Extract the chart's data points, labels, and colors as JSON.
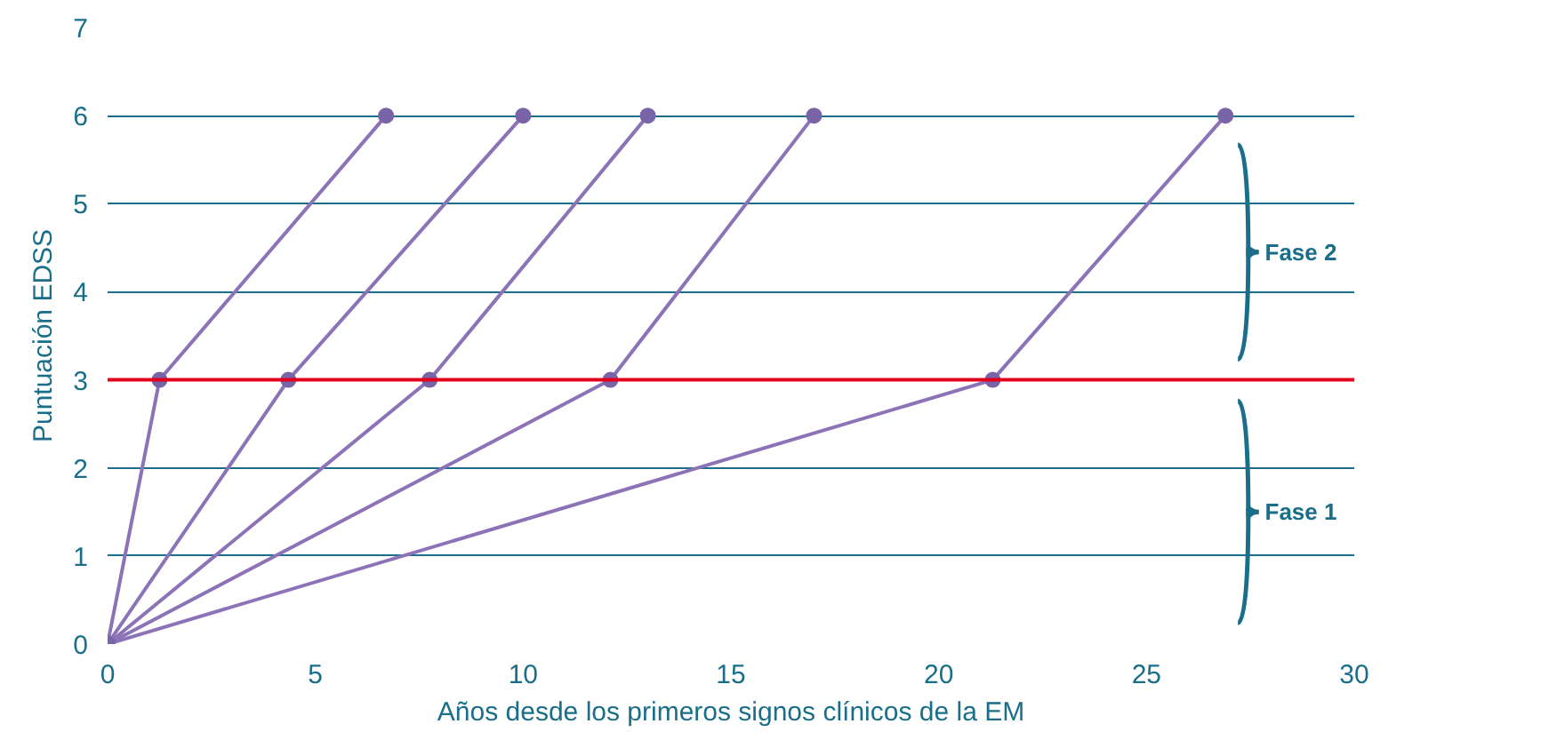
{
  "chart_data": {
    "type": "line",
    "xlabel": "Años desde los primeros signos clínicos de la EM",
    "ylabel": "Puntuación EDSS",
    "xlim": [
      0,
      30
    ],
    "xticks": [
      0,
      5,
      10,
      15,
      20,
      25,
      30
    ],
    "ylim": [
      0,
      7
    ],
    "yticks": [
      0,
      1,
      2,
      3,
      4,
      5,
      6,
      7
    ],
    "grid": "y",
    "marker": "circle",
    "line_style": "solid",
    "series": [
      {
        "color": "#8c73b8",
        "x": [
          0,
          1.25,
          6.7
        ],
        "values": [
          0,
          3,
          6
        ]
      },
      {
        "color": "#8c73b8",
        "x": [
          0,
          4.35,
          10.0
        ],
        "values": [
          0,
          3,
          6
        ]
      },
      {
        "color": "#8c73b8",
        "x": [
          0,
          7.75,
          13.0
        ],
        "values": [
          0,
          3,
          6
        ]
      },
      {
        "color": "#8c73b8",
        "x": [
          0,
          12.1,
          17.0
        ],
        "values": [
          0,
          3,
          6
        ]
      },
      {
        "color": "#8c73b8",
        "x": [
          0,
          21.3,
          26.9
        ],
        "values": [
          0,
          3,
          6
        ]
      }
    ],
    "ref_lines": [
      {
        "axis": "y",
        "value": 3,
        "color": "#e3001b"
      }
    ],
    "annotations": [
      "Fase 2",
      "Fase 1"
    ]
  }
}
